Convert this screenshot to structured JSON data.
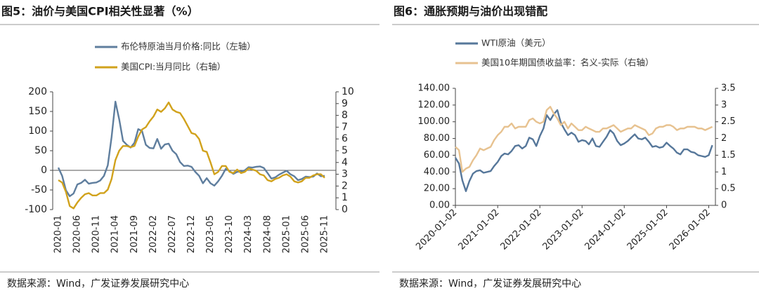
{
  "chart_data": [
    {
      "type": "line",
      "title": "图5：油价与美国CPI相关性显著（%）",
      "source": "数据来源：Wind，广发证券发展研究中心",
      "categories": [
        "2020-01",
        null,
        null,
        null,
        null,
        "2020-06",
        null,
        null,
        null,
        null,
        "2020-11",
        null,
        null,
        null,
        null,
        "2021-04",
        null,
        null,
        null,
        null,
        "2021-09",
        null,
        null,
        null,
        null,
        "2022-02",
        null,
        null,
        null,
        null,
        "2022-07",
        null,
        null,
        null,
        null,
        "2022-12",
        null,
        null,
        null,
        null,
        "2023-05",
        null,
        null,
        null,
        null,
        "2023-10",
        null,
        null,
        null,
        null,
        "2024-03",
        null,
        null,
        null,
        null,
        "2024-08",
        null,
        null,
        null,
        null,
        "2025-01",
        null,
        null,
        null,
        null,
        "2025-06",
        null,
        null,
        null,
        null,
        "2025-11"
      ],
      "series": [
        {
          "name": "布伦特原油当月价格:同比（左轴）",
          "color": "#5f7e9e",
          "axis": "y",
          "values": [
            7,
            -14,
            -51,
            -66,
            -59,
            -36,
            -32,
            -24,
            -34,
            -32,
            -31,
            -26,
            -14,
            13,
            85,
            175,
            130,
            75,
            65,
            58,
            70,
            105,
            100,
            65,
            57,
            56,
            80,
            55,
            66,
            68,
            50,
            41,
            21,
            11,
            12,
            9,
            -4,
            -14,
            -33,
            -20,
            -33,
            -39,
            -28,
            -14,
            4,
            -2,
            -9,
            -4,
            -3,
            0,
            8,
            7,
            9,
            10,
            6,
            -7,
            -21,
            -18,
            -11,
            -6,
            -1,
            -10,
            -15,
            -25,
            -22,
            -16,
            -17,
            -16,
            -8,
            -15,
            -14
          ]
        },
        {
          "name": "美国CPI:当月同比（右轴）",
          "color": "#d1a21c",
          "axis": "y2",
          "values": [
            2.5,
            2.3,
            1.5,
            0.3,
            0.1,
            0.6,
            1.0,
            1.3,
            1.4,
            1.2,
            1.2,
            1.4,
            1.4,
            1.7,
            2.6,
            4.2,
            5.0,
            5.4,
            5.4,
            5.3,
            5.4,
            6.2,
            6.8,
            7.0,
            7.5,
            7.9,
            8.5,
            8.3,
            8.6,
            9.1,
            8.5,
            8.3,
            8.2,
            7.7,
            7.1,
            6.5,
            6.4,
            6.0,
            5.0,
            4.9,
            4.0,
            3.0,
            3.2,
            3.7,
            3.7,
            3.2,
            3.1,
            3.4,
            3.1,
            3.2,
            3.5,
            3.4,
            3.3,
            3.0,
            2.9,
            2.5,
            2.4,
            2.6,
            2.7,
            2.9,
            3.0,
            2.8,
            2.4,
            2.3,
            2.4,
            2.7,
            2.7,
            2.9,
            3.0,
            3.0,
            2.7
          ]
        }
      ],
      "ylim": [
        -100,
        200
      ],
      "yticks": [
        -100,
        -50,
        0,
        50,
        100,
        150,
        200
      ],
      "y2lim": [
        0,
        10
      ],
      "y2ticks": [
        0,
        1,
        2,
        3,
        4,
        5,
        6,
        7,
        8,
        9,
        10
      ],
      "zero_line": true,
      "grid": false,
      "legend": "top"
    },
    {
      "type": "line",
      "title": "图6：通胀预期与油价出现错配",
      "source": "数据来源：Wind，广发证券发展研究中心",
      "x": [
        "2020-01-02",
        "2020-02-02",
        "2020-03-02",
        "2020-04-02",
        "2020-05-02",
        "2020-06-02",
        "2020-07-02",
        "2020-08-02",
        "2020-09-02",
        "2020-10-02",
        "2020-11-02",
        "2020-12-02",
        "2021-01-02",
        "2021-02-02",
        "2021-03-02",
        "2021-04-02",
        "2021-05-02",
        "2021-06-02",
        "2021-07-02",
        "2021-08-02",
        "2021-09-02",
        "2021-10-02",
        "2021-11-02",
        "2021-12-02",
        "2022-01-02",
        "2022-02-02",
        "2022-03-02",
        "2022-04-02",
        "2022-05-02",
        "2022-06-02",
        "2022-07-02",
        "2022-08-02",
        "2022-09-02",
        "2022-10-02",
        "2022-11-02",
        "2022-12-02",
        "2023-01-02",
        "2023-02-02",
        "2023-03-02",
        "2023-04-02",
        "2023-05-02",
        "2023-06-02",
        "2023-07-02",
        "2023-08-02",
        "2023-09-02",
        "2023-10-02",
        "2023-11-02",
        "2023-12-02",
        "2024-01-02",
        "2024-02-02",
        "2024-03-02",
        "2024-04-02",
        "2024-05-02",
        "2024-06-02",
        "2024-07-02",
        "2024-08-02",
        "2024-09-02",
        "2024-10-02",
        "2024-11-02",
        "2024-12-02",
        "2025-01-02",
        "2025-02-02",
        "2025-03-02",
        "2025-04-02",
        "2025-05-02",
        "2025-06-02",
        "2025-07-02",
        "2025-08-02",
        "2025-09-02",
        "2025-10-02",
        "2025-11-02",
        "2025-12-02",
        "2026-01-02",
        "2026-02-02"
      ],
      "series": [
        {
          "name": "WTI原油（美元）",
          "color": "#56779a",
          "axis": "y",
          "values": [
            57,
            50,
            30,
            17,
            29,
            38,
            41,
            42,
            39,
            40,
            41,
            47,
            52,
            59,
            62,
            61,
            65,
            71,
            72,
            68,
            71,
            81,
            79,
            71,
            83,
            92,
            108,
            102,
            109,
            114,
            99,
            91,
            84,
            87,
            84,
            76,
            78,
            77,
            73,
            80,
            71,
            70,
            76,
            82,
            90,
            86,
            77,
            72,
            74,
            77,
            81,
            85,
            80,
            79,
            81,
            76,
            70,
            71,
            69,
            70,
            75,
            71,
            68,
            63,
            61,
            67,
            67,
            64,
            63,
            60,
            59,
            58,
            60,
            72
          ]
        },
        {
          "name": "美国10年期国债收益率：名义-实际（右轴）",
          "color": "#e7c290",
          "axis": "y2",
          "values": [
            1.75,
            1.65,
            1.0,
            1.1,
            1.15,
            1.35,
            1.5,
            1.7,
            1.65,
            1.7,
            1.75,
            1.95,
            2.1,
            2.2,
            2.35,
            2.35,
            2.45,
            2.3,
            2.35,
            2.35,
            2.35,
            2.55,
            2.6,
            2.5,
            2.45,
            2.5,
            2.85,
            2.95,
            2.75,
            2.6,
            2.4,
            2.5,
            2.3,
            2.45,
            2.35,
            2.25,
            2.25,
            2.35,
            2.3,
            2.25,
            2.2,
            2.2,
            2.3,
            2.3,
            2.35,
            2.4,
            2.3,
            2.2,
            2.25,
            2.3,
            2.3,
            2.4,
            2.35,
            2.3,
            2.25,
            2.1,
            2.15,
            2.3,
            2.35,
            2.35,
            2.4,
            2.4,
            2.35,
            2.25,
            2.3,
            2.3,
            2.35,
            2.35,
            2.35,
            2.3,
            2.3,
            2.25,
            2.3,
            2.35
          ]
        }
      ],
      "xlim": [
        "2020-01-02",
        "2026-03-01"
      ],
      "xticks": [
        "2020-01-02",
        "2021-01-02",
        "2022-01-02",
        "2023-01-02",
        "2024-01-02",
        "2025-01-02",
        "2026-01-02"
      ],
      "ylim": [
        0,
        140
      ],
      "yticks": [
        {
          "value": 0,
          "label": "0.00"
        },
        {
          "value": 20,
          "label": "20.00"
        },
        {
          "value": 40,
          "label": "40.00"
        },
        {
          "value": 60,
          "label": "60.00"
        },
        {
          "value": 80,
          "label": "80.00"
        },
        {
          "value": 100,
          "label": "100.00"
        },
        {
          "value": 120,
          "label": "120.00"
        },
        {
          "value": 140,
          "label": "140.00"
        }
      ],
      "y2lim": [
        0,
        3.5
      ],
      "y2ticks": [
        0,
        0.5,
        1,
        1.5,
        2,
        2.5,
        3,
        3.5
      ],
      "zero_line": false,
      "grid": false,
      "legend": "top"
    }
  ]
}
